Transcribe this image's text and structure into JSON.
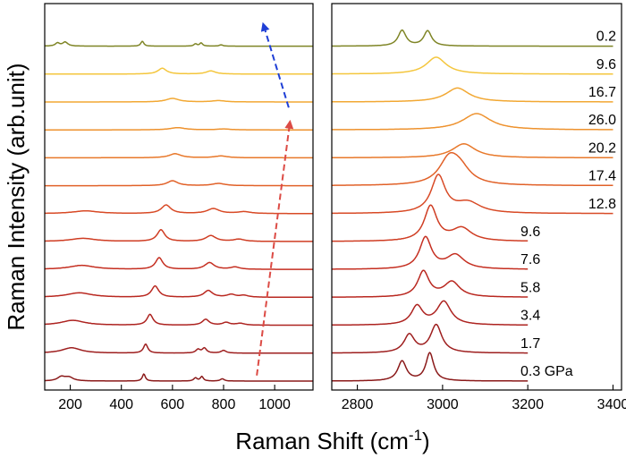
{
  "chart_data": {
    "type": "line",
    "xlabel": "Raman Shift (cm-1)",
    "xlabel_base": "Raman Shift (cm",
    "xlabel_sup": "-1",
    "xlabel_close": ")",
    "ylabel": "Raman Intensity (arb.unit)",
    "grid": false,
    "stacked_offset": true,
    "panels": [
      {
        "name": "low-frequency",
        "xlim": [
          100,
          1150
        ],
        "xticks": [
          200,
          400,
          600,
          800,
          1000
        ],
        "arrows": [
          {
            "color": "#dc4b45",
            "style": "dashed",
            "from": [
              930,
              0.2
            ],
            "to": [
              1060,
              9.3
            ]
          },
          {
            "color": "#1f3fd6",
            "style": "dashed",
            "from": [
              1055,
              9.8
            ],
            "to": [
              955,
              12.8
            ]
          }
        ]
      },
      {
        "name": "high-frequency",
        "xlim": [
          2740,
          3420
        ],
        "xticks": [
          2800,
          3000,
          3200,
          3400
        ]
      }
    ],
    "series": [
      {
        "label": "0.3 GPa",
        "color": "#8b1a1a",
        "low_peaks": [
          [
            165,
            0.45,
            18
          ],
          [
            195,
            0.4,
            20
          ],
          [
            488,
            0.8,
            7
          ],
          [
            690,
            0.35,
            8
          ],
          [
            715,
            0.5,
            7
          ],
          [
            795,
            0.25,
            9
          ]
        ],
        "high_peaks": [
          [
            2905,
            1.7,
            12
          ],
          [
            2970,
            2.4,
            11
          ]
        ],
        "high_end": 3200
      },
      {
        "label": "1.7",
        "color": "#9e1f1f",
        "low_peaks": [
          [
            205,
            0.6,
            45
          ],
          [
            495,
            1.0,
            10
          ],
          [
            700,
            0.4,
            10
          ],
          [
            725,
            0.55,
            10
          ],
          [
            800,
            0.3,
            12
          ]
        ],
        "high_peaks": [
          [
            2922,
            1.55,
            15
          ],
          [
            2985,
            2.4,
            16
          ]
        ],
        "high_end": 3200
      },
      {
        "label": "3.4",
        "color": "#ad2320",
        "low_peaks": [
          [
            210,
            0.55,
            55
          ],
          [
            512,
            1.2,
            14
          ],
          [
            730,
            0.65,
            16
          ],
          [
            810,
            0.3,
            16
          ],
          [
            865,
            0.2,
            20
          ]
        ],
        "high_peaks": [
          [
            2940,
            1.6,
            16
          ],
          [
            3003,
            2.0,
            20
          ]
        ],
        "high_end": 3200
      },
      {
        "label": "5.8",
        "color": "#b92820",
        "low_peaks": [
          [
            235,
            0.5,
            60
          ],
          [
            532,
            1.25,
            17
          ],
          [
            740,
            0.75,
            20
          ],
          [
            830,
            0.3,
            20
          ],
          [
            880,
            0.2,
            20
          ]
        ],
        "high_peaks": [
          [
            2955,
            2.2,
            16
          ],
          [
            3022,
            1.3,
            22
          ]
        ],
        "high_end": 3200
      },
      {
        "label": "7.6",
        "color": "#c52f21",
        "low_peaks": [
          [
            245,
            0.45,
            60
          ],
          [
            548,
            1.3,
            17
          ],
          [
            745,
            0.75,
            22
          ],
          [
            845,
            0.25,
            22
          ]
        ],
        "high_peaks": [
          [
            2960,
            2.7,
            17
          ],
          [
            3030,
            1.2,
            25
          ]
        ],
        "high_end": 3200
      },
      {
        "label": "9.6",
        "color": "#cf3d23",
        "low_peaks": [
          [
            250,
            0.35,
            60
          ],
          [
            555,
            1.3,
            18
          ],
          [
            750,
            0.65,
            24
          ],
          [
            860,
            0.25,
            25
          ]
        ],
        "high_peaks": [
          [
            2972,
            3.0,
            18
          ],
          [
            3045,
            1.1,
            28
          ]
        ],
        "high_end": 3200
      },
      {
        "label": "12.8",
        "color": "#d84a26",
        "low_peaks": [
          [
            260,
            0.3,
            60
          ],
          [
            575,
            0.95,
            22
          ],
          [
            760,
            0.55,
            28
          ],
          [
            880,
            0.2,
            30
          ]
        ],
        "high_peaks": [
          [
            2990,
            3.2,
            20
          ],
          [
            3060,
            0.9,
            35
          ]
        ],
        "high_end": 3400
      },
      {
        "label": "17.4",
        "color": "#e16128",
        "low_peaks": [
          [
            600,
            0.55,
            25
          ],
          [
            780,
            0.25,
            30
          ]
        ],
        "high_peaks": [
          [
            3015,
            2.0,
            28
          ],
          [
            3040,
            1.3,
            30
          ]
        ],
        "high_end": 3400
      },
      {
        "label": "20.2",
        "color": "#e8782a",
        "low_peaks": [
          [
            610,
            0.45,
            28
          ],
          [
            790,
            0.2,
            30
          ]
        ],
        "high_peaks": [
          [
            3050,
            1.2,
            33
          ]
        ],
        "high_end": 3400
      },
      {
        "label": "26.0",
        "color": "#ee922e",
        "low_peaks": [
          [
            620,
            0.25,
            35
          ],
          [
            800,
            0.1,
            30
          ]
        ],
        "high_peaks": [
          [
            3080,
            1.4,
            40
          ]
        ],
        "high_end": 3400
      },
      {
        "label": "16.7",
        "color": "#f2a833",
        "low_peaks": [
          [
            600,
            0.4,
            30
          ],
          [
            780,
            0.15,
            30
          ]
        ],
        "high_peaks": [
          [
            3035,
            1.2,
            33
          ]
        ],
        "high_end": 3400
      },
      {
        "label": "9.6",
        "color": "#f4c63d",
        "low_peaks": [
          [
            560,
            0.65,
            20
          ],
          [
            750,
            0.35,
            22
          ]
        ],
        "high_peaks": [
          [
            2985,
            1.45,
            28
          ]
        ],
        "high_end": 3400
      },
      {
        "label": "0.2",
        "color": "#7f8526",
        "low_peaks": [
          [
            150,
            0.35,
            10
          ],
          [
            180,
            0.45,
            12
          ],
          [
            482,
            0.55,
            7
          ],
          [
            690,
            0.25,
            7
          ],
          [
            712,
            0.35,
            7
          ],
          [
            790,
            0.15,
            8
          ]
        ],
        "high_peaks": [
          [
            2905,
            1.35,
            11
          ],
          [
            2965,
            1.3,
            11
          ]
        ],
        "high_end": 3400
      }
    ]
  }
}
